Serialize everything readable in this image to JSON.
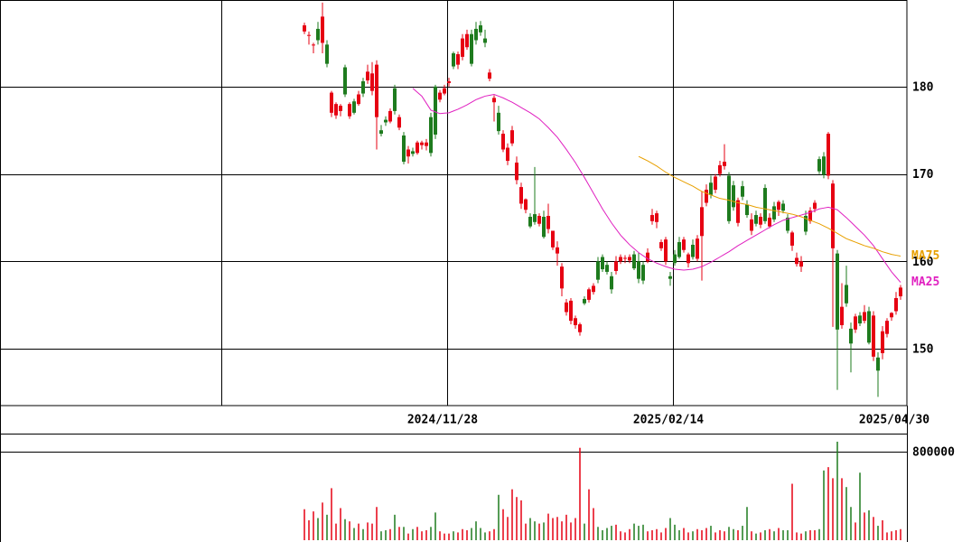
{
  "chart_data": {
    "type": "candlestick",
    "categories": [
      null,
      null,
      null,
      null,
      null,
      null,
      null,
      null,
      null,
      null,
      null,
      null,
      null,
      null,
      null,
      null,
      null,
      null,
      null,
      null,
      null,
      null,
      null,
      null,
      null,
      null,
      null,
      null,
      null,
      null,
      null,
      null,
      "2024/11/28",
      null,
      null,
      null,
      null,
      null,
      null,
      null,
      null,
      null,
      null,
      null,
      null,
      null,
      null,
      null,
      null,
      null,
      null,
      null,
      null,
      null,
      null,
      null,
      null,
      null,
      null,
      null,
      null,
      null,
      null,
      null,
      null,
      null,
      null,
      null,
      null,
      null,
      null,
      null,
      null,
      null,
      null,
      null,
      null,
      null,
      null,
      null,
      null,
      null,
      "2025/02/14",
      null,
      null,
      null,
      null,
      null,
      null,
      null,
      null,
      null,
      null,
      null,
      null,
      null,
      null,
      null,
      null,
      null,
      null,
      null,
      null,
      null,
      null,
      null,
      null,
      null,
      null,
      null,
      null,
      null,
      null,
      null,
      null,
      null,
      null,
      null,
      null,
      null,
      null,
      null,
      null,
      null,
      null,
      null,
      null,
      null,
      null,
      null,
      null,
      null,
      "2025/04/30"
    ],
    "ohlc": [
      [
        186.3,
        187.3,
        186.0,
        187.0
      ],
      [
        185.8,
        186.3,
        184.8,
        185.9
      ],
      [
        184.7,
        185.0,
        183.8,
        184.8
      ],
      [
        186.6,
        187.4,
        184.8,
        185.3
      ],
      [
        185.0,
        189.6,
        183.8,
        188.0
      ],
      [
        184.8,
        185.3,
        182.2,
        182.6
      ],
      [
        177.0,
        179.5,
        176.5,
        179.3
      ],
      [
        176.7,
        178.2,
        176.3,
        178.0
      ],
      [
        177.2,
        178.0,
        176.6,
        177.8
      ],
      [
        182.2,
        182.5,
        178.8,
        179.1
      ],
      [
        176.6,
        178.2,
        176.3,
        178.0
      ],
      [
        178.3,
        178.6,
        176.8,
        177.0
      ],
      [
        178.0,
        179.5,
        177.8,
        179.1
      ],
      [
        180.6,
        181.0,
        178.8,
        179.2
      ],
      [
        180.7,
        182.5,
        180.3,
        181.7
      ],
      [
        179.5,
        182.8,
        179.0,
        181.5
      ],
      [
        176.5,
        183.0,
        172.8,
        182.5
      ],
      [
        175.0,
        175.6,
        174.3,
        174.6
      ],
      [
        176.2,
        176.6,
        175.5,
        175.9
      ],
      [
        176.0,
        177.5,
        175.8,
        177.2
      ],
      [
        179.8,
        180.2,
        176.8,
        177.2
      ],
      [
        175.3,
        176.8,
        175.0,
        176.5
      ],
      [
        174.4,
        174.8,
        171.1,
        171.4
      ],
      [
        172.0,
        173.2,
        171.2,
        172.8
      ],
      [
        172.6,
        173.0,
        172.0,
        172.3
      ],
      [
        172.4,
        173.8,
        172.2,
        173.6
      ],
      [
        173.3,
        173.8,
        172.8,
        173.6
      ],
      [
        173.2,
        174.0,
        172.7,
        173.6
      ],
      [
        176.5,
        177.0,
        172.0,
        172.4
      ],
      [
        180.0,
        180.2,
        174.0,
        174.5
      ],
      [
        178.5,
        179.6,
        178.2,
        179.3
      ],
      [
        179.2,
        180.2,
        179.0,
        179.8
      ],
      [
        180.4,
        181.0,
        180.0,
        180.6
      ],
      [
        183.8,
        184.0,
        182.0,
        182.3
      ],
      [
        182.5,
        184.0,
        182.0,
        183.7
      ],
      [
        183.4,
        186.0,
        183.0,
        185.5
      ],
      [
        184.5,
        186.5,
        184.2,
        186.0
      ],
      [
        186.0,
        186.5,
        182.3,
        182.6
      ],
      [
        186.6,
        187.4,
        184.8,
        185.3
      ],
      [
        187.0,
        187.5,
        185.8,
        186.2
      ],
      [
        185.5,
        186.5,
        184.5,
        185.0
      ],
      [
        180.9,
        182.0,
        180.6,
        181.6
      ],
      [
        178.2,
        179.0,
        176.0,
        178.7
      ],
      [
        177.0,
        177.8,
        174.5,
        174.9
      ],
      [
        172.8,
        175.0,
        172.5,
        174.6
      ],
      [
        171.5,
        173.5,
        171.0,
        173.0
      ],
      [
        173.5,
        175.5,
        173.2,
        175.0
      ],
      [
        169.3,
        172.0,
        168.8,
        171.3
      ],
      [
        166.6,
        169.0,
        166.0,
        168.5
      ],
      [
        165.9,
        167.2,
        165.5,
        167.1
      ],
      [
        165.1,
        165.5,
        163.8,
        164.0
      ],
      [
        165.4,
        170.8,
        164.2,
        164.5
      ],
      [
        164.3,
        165.5,
        164.0,
        165.2
      ],
      [
        165.1,
        165.8,
        162.6,
        162.8
      ],
      [
        163.7,
        166.6,
        163.2,
        165.2
      ],
      [
        161.6,
        163.5,
        161.3,
        163.5
      ],
      [
        160.9,
        162.3,
        159.5,
        161.6
      ],
      [
        156.9,
        159.8,
        156.0,
        159.4
      ],
      [
        154.2,
        155.7,
        153.8,
        155.3
      ],
      [
        153.2,
        155.8,
        152.8,
        155.5
      ],
      [
        152.7,
        153.8,
        152.3,
        153.5
      ],
      [
        151.9,
        153.0,
        151.5,
        152.8
      ],
      [
        155.7,
        156.0,
        155.0,
        155.2
      ],
      [
        155.6,
        157.0,
        155.3,
        156.8
      ],
      [
        156.5,
        157.5,
        156.2,
        157.2
      ],
      [
        160.0,
        160.5,
        157.5,
        157.9
      ],
      [
        160.5,
        160.8,
        158.8,
        159.1
      ],
      [
        159.6,
        160.0,
        158.5,
        158.8
      ],
      [
        158.3,
        158.8,
        156.3,
        156.8
      ],
      [
        158.9,
        160.6,
        158.5,
        160.0
      ],
      [
        160.0,
        160.8,
        159.7,
        160.5
      ],
      [
        160.3,
        160.7,
        159.8,
        160.4
      ],
      [
        160.1,
        160.8,
        159.8,
        160.5
      ],
      [
        160.8,
        161.2,
        159.0,
        159.2
      ],
      [
        160.0,
        161.0,
        157.5,
        158.0
      ],
      [
        159.6,
        160.0,
        157.4,
        157.8
      ],
      [
        160.0,
        161.5,
        159.8,
        161.0
      ],
      [
        164.6,
        166.0,
        164.2,
        165.3
      ],
      [
        164.5,
        165.8,
        163.8,
        165.5
      ],
      [
        161.5,
        162.5,
        161.2,
        162.2
      ],
      [
        160.0,
        162.8,
        159.6,
        162.5
      ],
      [
        158.3,
        158.8,
        157.2,
        158.0
      ],
      [
        160.8,
        161.3,
        159.5,
        159.8
      ],
      [
        162.2,
        162.8,
        160.3,
        160.5
      ],
      [
        161.3,
        162.8,
        161.0,
        162.5
      ],
      [
        159.8,
        161.0,
        159.3,
        160.8
      ],
      [
        161.9,
        162.5,
        160.2,
        160.5
      ],
      [
        160.3,
        163.0,
        160.0,
        162.6
      ],
      [
        162.9,
        168.0,
        157.8,
        166.2
      ],
      [
        166.7,
        168.8,
        166.3,
        168.2
      ],
      [
        169.0,
        169.8,
        167.2,
        167.6
      ],
      [
        168.2,
        170.0,
        167.8,
        169.7
      ],
      [
        170.0,
        171.5,
        169.7,
        171.0
      ],
      [
        170.9,
        173.4,
        170.5,
        171.4
      ],
      [
        169.8,
        170.2,
        164.3,
        164.6
      ],
      [
        168.7,
        169.2,
        165.8,
        166.2
      ],
      [
        164.4,
        167.3,
        164.0,
        167.0
      ],
      [
        168.6,
        169.2,
        167.0,
        167.4
      ],
      [
        166.5,
        167.0,
        165.0,
        165.3
      ],
      [
        163.5,
        165.5,
        163.0,
        164.8
      ],
      [
        165.3,
        165.8,
        164.0,
        164.3
      ],
      [
        164.2,
        165.5,
        163.8,
        165.1
      ],
      [
        168.4,
        168.8,
        164.3,
        164.6
      ],
      [
        164.0,
        165.5,
        163.8,
        165.0
      ],
      [
        166.3,
        166.8,
        164.5,
        164.8
      ],
      [
        165.9,
        167.0,
        165.2,
        166.8
      ],
      [
        166.6,
        167.0,
        165.5,
        165.8
      ],
      [
        165.0,
        165.4,
        163.2,
        163.5
      ],
      [
        161.8,
        163.5,
        161.2,
        163.3
      ],
      [
        159.7,
        161.0,
        159.4,
        160.4
      ],
      [
        159.4,
        160.6,
        158.8,
        160.0
      ],
      [
        165.2,
        165.8,
        163.0,
        163.4
      ],
      [
        164.6,
        166.2,
        164.3,
        165.8
      ],
      [
        166.0,
        167.0,
        165.6,
        166.7
      ],
      [
        171.7,
        172.0,
        170.0,
        170.3
      ],
      [
        172.0,
        172.5,
        169.5,
        169.9
      ],
      [
        169.8,
        174.8,
        169.4,
        174.6
      ],
      [
        161.5,
        169.3,
        152.5,
        168.9
      ],
      [
        160.9,
        161.3,
        145.3,
        152.2
      ],
      [
        152.7,
        157.5,
        152.3,
        154.8
      ],
      [
        157.3,
        159.5,
        154.8,
        155.2
      ],
      [
        152.3,
        153.0,
        147.3,
        150.6
      ],
      [
        152.2,
        154.0,
        151.8,
        153.7
      ],
      [
        153.8,
        154.2,
        152.6,
        152.9
      ],
      [
        153.2,
        155.0,
        152.9,
        154.2
      ],
      [
        154.3,
        154.8,
        150.5,
        150.7
      ],
      [
        149.1,
        154.3,
        148.6,
        153.8
      ],
      [
        149.0,
        149.6,
        144.5,
        147.5
      ],
      [
        149.5,
        152.6,
        148.8,
        152.0
      ],
      [
        151.7,
        153.5,
        151.3,
        153.2
      ],
      [
        153.6,
        154.2,
        153.2,
        154.1
      ],
      [
        154.3,
        156.5,
        153.9,
        155.8
      ],
      [
        156.0,
        157.3,
        155.6,
        157.0
      ]
    ],
    "up_color": "#e60012",
    "down_color": "#1e7b1e",
    "ylim": [
      143.5,
      189.9
    ],
    "yticks": [
      150,
      160,
      170,
      180
    ],
    "grid": true,
    "series": [
      {
        "name": "MA25",
        "color": "#e020c0",
        "values": [
          null,
          null,
          null,
          null,
          null,
          null,
          null,
          null,
          null,
          null,
          null,
          null,
          null,
          null,
          null,
          null,
          null,
          null,
          null,
          null,
          null,
          null,
          null,
          null,
          179.8,
          179.35,
          178.9,
          178.1,
          177.3,
          177.1,
          176.9,
          176.95,
          177.0,
          177.2,
          177.4,
          177.65,
          177.9,
          178.2,
          178.5,
          178.7,
          178.9,
          179.0,
          179.1,
          178.9,
          178.7,
          178.45,
          178.2,
          177.9,
          177.6,
          177.3,
          177.0,
          176.65,
          176.3,
          175.8,
          175.3,
          174.75,
          174.2,
          173.5,
          172.8,
          172.05,
          171.3,
          170.45,
          169.6,
          168.7,
          167.8,
          166.9,
          166.0,
          165.2,
          164.4,
          163.7,
          163.0,
          162.45,
          161.9,
          161.45,
          161.0,
          160.65,
          160.3,
          160.05,
          159.8,
          159.6,
          159.4,
          159.25,
          159.1,
          159.05,
          159.0,
          159.05,
          159.1,
          159.25,
          159.4,
          159.65,
          159.9,
          160.2,
          160.5,
          160.8,
          161.1,
          161.45,
          161.8,
          162.1,
          162.4,
          162.7,
          163.0,
          163.3,
          163.6,
          163.9,
          164.2,
          164.45,
          164.7,
          164.85,
          165.0,
          165.15,
          165.3,
          165.45,
          165.6,
          165.8,
          166.0,
          166.1,
          166.2,
          166.05,
          165.9,
          165.45,
          165.0,
          164.5,
          164.0,
          163.5,
          163.0,
          162.4,
          161.8,
          161.05,
          160.3,
          159.55,
          158.8,
          158.2,
          157.6
        ]
      },
      {
        "name": "MA75",
        "color": "#e8a000",
        "values": [
          null,
          null,
          null,
          null,
          null,
          null,
          null,
          null,
          null,
          null,
          null,
          null,
          null,
          null,
          null,
          null,
          null,
          null,
          null,
          null,
          null,
          null,
          null,
          null,
          null,
          null,
          null,
          null,
          null,
          null,
          null,
          null,
          null,
          null,
          null,
          null,
          null,
          null,
          null,
          null,
          null,
          null,
          null,
          null,
          null,
          null,
          null,
          null,
          null,
          null,
          null,
          null,
          null,
          null,
          null,
          null,
          null,
          null,
          null,
          null,
          null,
          null,
          null,
          null,
          null,
          null,
          null,
          null,
          null,
          null,
          null,
          null,
          null,
          null,
          172.0,
          171.75,
          171.5,
          171.2,
          170.9,
          170.55,
          170.2,
          169.9,
          169.6,
          169.35,
          169.1,
          168.85,
          168.6,
          168.3,
          168.0,
          167.8,
          167.6,
          167.4,
          167.2,
          167.1,
          167.0,
          166.85,
          166.7,
          166.6,
          166.5,
          166.35,
          166.2,
          166.1,
          166.0,
          165.9,
          165.8,
          165.7,
          165.6,
          165.5,
          165.4,
          165.25,
          165.1,
          164.9,
          164.7,
          164.5,
          164.3,
          164.05,
          163.8,
          163.5,
          163.2,
          162.9,
          162.6,
          162.4,
          162.2,
          162.0,
          161.8,
          161.65,
          161.5,
          161.3,
          161.1,
          160.95,
          160.8,
          160.7,
          160.6
        ]
      }
    ],
    "volume": {
      "values": [
        280000,
        180000,
        260000,
        200000,
        340000,
        230000,
        470000,
        150000,
        290000,
        190000,
        170000,
        110000,
        150000,
        100000,
        160000,
        150000,
        300000,
        80000,
        90000,
        100000,
        230000,
        120000,
        120000,
        60000,
        100000,
        120000,
        80000,
        90000,
        120000,
        250000,
        80000,
        60000,
        60000,
        80000,
        70000,
        100000,
        90000,
        110000,
        170000,
        110000,
        70000,
        80000,
        100000,
        410000,
        280000,
        210000,
        460000,
        390000,
        360000,
        150000,
        200000,
        170000,
        150000,
        160000,
        240000,
        200000,
        210000,
        170000,
        230000,
        160000,
        200000,
        835000,
        150000,
        460000,
        290000,
        120000,
        90000,
        110000,
        130000,
        140000,
        80000,
        70000,
        100000,
        150000,
        130000,
        140000,
        80000,
        90000,
        100000,
        70000,
        110000,
        200000,
        140000,
        90000,
        110000,
        70000,
        80000,
        100000,
        90000,
        110000,
        130000,
        70000,
        90000,
        80000,
        120000,
        100000,
        90000,
        130000,
        300000,
        80000,
        60000,
        70000,
        90000,
        100000,
        80000,
        110000,
        90000,
        90000,
        510000,
        70000,
        60000,
        80000,
        90000,
        90000,
        100000,
        630000,
        660000,
        560000,
        890000,
        560000,
        480000,
        300000,
        160000,
        610000,
        250000,
        270000,
        210000,
        130000,
        180000,
        70000,
        80000,
        90000,
        100000
      ],
      "ylim": [
        0,
        955000
      ],
      "yticks": [
        800000
      ]
    }
  }
}
